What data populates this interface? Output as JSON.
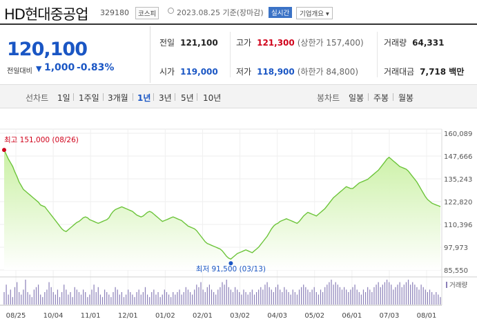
{
  "header": {
    "name": "HD현대중공업",
    "code": "329180",
    "market": "코스피",
    "date": "2023.08.25 기준(장마감)",
    "realtime": "실시간",
    "company_info": "기업개요 ▾"
  },
  "price": {
    "current": "120,100",
    "change_label": "전일대비",
    "change_arrow": "▼",
    "change": "1,000",
    "change_pct": "-0.83%"
  },
  "stats": {
    "prev_label": "전일",
    "prev": "121,100",
    "high_label": "고가",
    "high": "121,300",
    "upper_limit": "(상한가 157,400)",
    "volume_label": "거래량",
    "volume": "64,331",
    "open_label": "시가",
    "open": "119,000",
    "low_label": "저가",
    "low": "118,900",
    "lower_limit": "(하한가 84,800)",
    "amount_label": "거래대금",
    "amount": "7,718 백만"
  },
  "tabs": {
    "line_label": "선차트",
    "line_items": [
      "1일",
      "1주일",
      "3개월",
      "1년",
      "3년",
      "5년",
      "10년"
    ],
    "selected": "1년",
    "candle_label": "봉차트",
    "candle_items": [
      "일봉",
      "주봉",
      "월봉"
    ]
  },
  "chart_data": {
    "type": "area",
    "y_ticks": [
      "160,089",
      "147,666",
      "135,243",
      "122,820",
      "110,396",
      "97,973",
      "85,550"
    ],
    "ylim": [
      85550,
      160089
    ],
    "x_ticks": [
      "08/25",
      "10/04",
      "11/01",
      "12/01",
      "01/02",
      "02/01",
      "03/02",
      "04/03",
      "05/02",
      "06/01",
      "07/03",
      "08/01"
    ],
    "max_label": "최고 151,000 (08/26)",
    "min_label": "최저 91,500 (03/13)",
    "volume_label": "거래량",
    "colors": {
      "line": "#6cc43a",
      "fill_top": "#c8f0a0",
      "fill_bottom": "#ffffff",
      "volume": "#8a7fb8",
      "max": "#d0021b",
      "min": "#1a56c4"
    },
    "series": [
      151000,
      148500,
      146000,
      144000,
      142000,
      139000,
      136500,
      133500,
      131500,
      129500,
      128500,
      127500,
      126500,
      125500,
      124500,
      123500,
      122500,
      121000,
      120500,
      120000,
      118500,
      117000,
      115500,
      114000,
      112500,
      111000,
      109500,
      108000,
      107000,
      106500,
      107500,
      108500,
      109500,
      110500,
      111500,
      112000,
      113000,
      114000,
      114500,
      114000,
      113000,
      112500,
      112000,
      111500,
      111000,
      111500,
      112000,
      112500,
      113000,
      114000,
      116000,
      117500,
      118500,
      119000,
      119500,
      120000,
      119500,
      119000,
      118500,
      118000,
      117500,
      116500,
      115500,
      115000,
      114500,
      115000,
      116000,
      117000,
      117500,
      117000,
      116000,
      115000,
      114000,
      113000,
      112000,
      112500,
      113000,
      113500,
      114000,
      114500,
      114000,
      113500,
      113000,
      112500,
      111500,
      110500,
      109500,
      109000,
      108500,
      108000,
      107000,
      105500,
      104000,
      102500,
      101000,
      100000,
      99500,
      99000,
      98500,
      98000,
      97500,
      97000,
      96000,
      94500,
      93000,
      92000,
      91500,
      92500,
      93500,
      94500,
      95000,
      95500,
      96000,
      96500,
      96000,
      95500,
      95000,
      96000,
      97000,
      98000,
      99500,
      101000,
      102500,
      104000,
      106000,
      108000,
      109500,
      110500,
      111000,
      112000,
      112500,
      113000,
      113500,
      113000,
      112500,
      112000,
      111500,
      111000,
      112000,
      113500,
      115000,
      116000,
      117000,
      116500,
      116000,
      115500,
      115000,
      116000,
      117000,
      118000,
      119000,
      120500,
      122000,
      123500,
      125000,
      126000,
      127000,
      128000,
      129000,
      130000,
      131000,
      130500,
      130000,
      130000,
      131000,
      132000,
      133000,
      133500,
      134000,
      134500,
      135000,
      136000,
      137000,
      138000,
      139000,
      140000,
      141500,
      143000,
      144500,
      146000,
      147000,
      146000,
      145000,
      144000,
      143000,
      142000,
      141500,
      141000,
      140500,
      139500,
      138000,
      136500,
      135000,
      133500,
      131500,
      129500,
      127500,
      125500,
      124000,
      123000,
      122000,
      121500,
      121000,
      120600,
      120100
    ],
    "volume": [
      5,
      8,
      4,
      6,
      3,
      7,
      9,
      5,
      4,
      6,
      10,
      5,
      4,
      3,
      6,
      7,
      8,
      4,
      3,
      5,
      6,
      9,
      7,
      5,
      4,
      6,
      3,
      5,
      8,
      6,
      4,
      5,
      3,
      7,
      6,
      5,
      4,
      6,
      5,
      3,
      4,
      6,
      8,
      5,
      7,
      4,
      3,
      6,
      5,
      4,
      3,
      5,
      7,
      6,
      4,
      5,
      3,
      4,
      6,
      5,
      4,
      3,
      5,
      6,
      4,
      5,
      7,
      4,
      3,
      5,
      6,
      4,
      5,
      3,
      4,
      6,
      5,
      4,
      3,
      5,
      4,
      5,
      6,
      4,
      5,
      7,
      6,
      5,
      4,
      6,
      8,
      7,
      9,
      6,
      5,
      7,
      8,
      6,
      5,
      4,
      6,
      7,
      9,
      8,
      10,
      7,
      6,
      5,
      7,
      6,
      5,
      4,
      6,
      5,
      4,
      5,
      6,
      4,
      5,
      6,
      7,
      6,
      8,
      9,
      7,
      6,
      5,
      7,
      8,
      6,
      5,
      7,
      6,
      5,
      4,
      6,
      5,
      4,
      6,
      7,
      8,
      7,
      6,
      5,
      6,
      7,
      5,
      4,
      6,
      5,
      7,
      8,
      9,
      10,
      8,
      9,
      8,
      7,
      6,
      7,
      6,
      5,
      6,
      7,
      8,
      6,
      5,
      4,
      6,
      5,
      7,
      6,
      5,
      7,
      8,
      9,
      7,
      8,
      9,
      10,
      9,
      8,
      6,
      7,
      8,
      9,
      7,
      8,
      9,
      10,
      8,
      9,
      8,
      7,
      6,
      8,
      7,
      6,
      5,
      6,
      5,
      4,
      5,
      4,
      3
    ]
  }
}
